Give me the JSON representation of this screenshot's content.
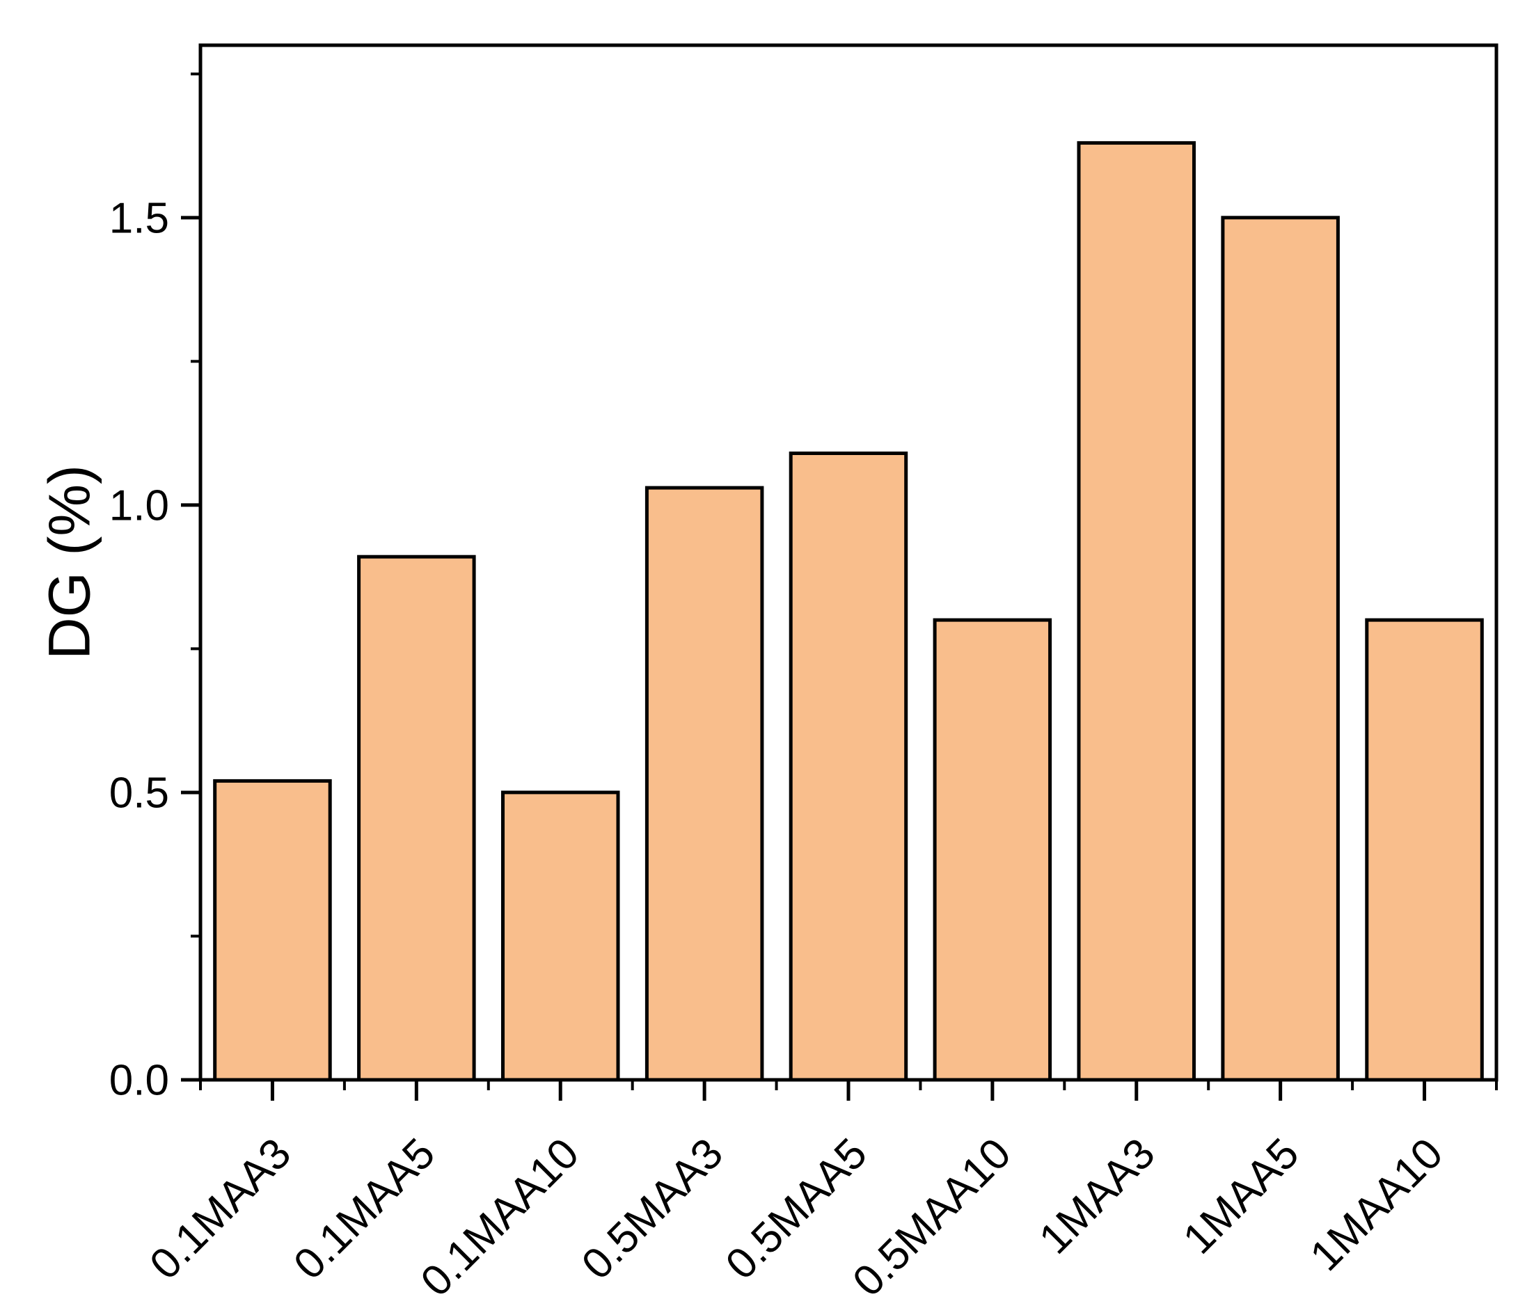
{
  "figure": {
    "background": "#ffffff"
  },
  "chart_data": {
    "type": "bar",
    "categories": [
      "0.1MAA3",
      "0.1MAA5",
      "0.1MAA10",
      "0.5MAA3",
      "0.5MAA5",
      "0.5MAA10",
      "1MAA3",
      "1MAA5",
      "1MAA10"
    ],
    "values": [
      0.52,
      0.91,
      0.5,
      1.03,
      1.09,
      0.8,
      1.63,
      1.5,
      0.8
    ],
    "title": "",
    "xlabel": "",
    "ylabel": "DG (%)",
    "ylim": [
      0,
      1.8
    ],
    "yticks": [
      0.0,
      0.5,
      1.0,
      1.5
    ],
    "ytick_labels": [
      "0.0",
      "0.5",
      "1.0",
      "1.5"
    ],
    "y_minor_ticks": [
      0.25,
      0.75,
      1.25,
      1.75
    ],
    "x_label_rotation_deg": 45,
    "grid": false,
    "legend": false,
    "bar_fill": "#F9BE8C",
    "bar_edge": "#000000",
    "axis_color": "#000000"
  }
}
